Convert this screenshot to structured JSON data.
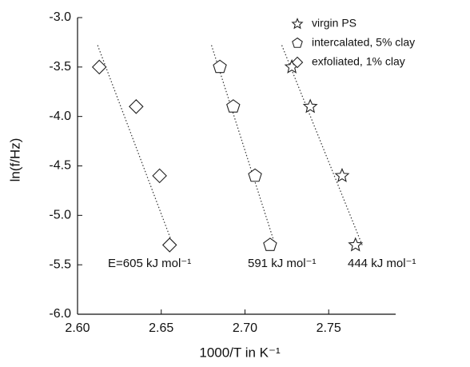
{
  "chart_data": {
    "type": "scatter",
    "x_label": "1000/T in K⁻¹",
    "y_label": "ln(f/Hz)",
    "xlim": [
      2.6,
      2.79
    ],
    "ylim": [
      -6.0,
      -3.0
    ],
    "xticks": [
      {
        "value": 2.6,
        "label": "2.60"
      },
      2.65,
      {
        "value": 2.7,
        "label": "2.70"
      },
      2.75
    ],
    "yticks": [
      {
        "value": -3.0,
        "label": "-3.0"
      },
      -3.5,
      {
        "value": -4.0,
        "label": "-4.0"
      },
      -4.5,
      {
        "value": -5.0,
        "label": "-5.0"
      },
      -5.5,
      {
        "value": -6.0,
        "label": "-6.0"
      }
    ],
    "legend_position": "upper right",
    "series": [
      {
        "name": "virgin PS",
        "marker": "star",
        "color": "#222222",
        "x": [
          2.728,
          2.739,
          2.758,
          2.766
        ],
        "values": [
          -3.5,
          -3.9,
          -4.6,
          -5.3
        ]
      },
      {
        "name": "intercalated, 5% clay",
        "marker": "pentagon",
        "color": "#222222",
        "x": [
          2.685,
          2.693,
          2.706,
          2.715
        ],
        "values": [
          -3.5,
          -3.9,
          -4.6,
          -5.3
        ]
      },
      {
        "name": "exfoliated, 1% clay",
        "marker": "diamond",
        "color": "#222222",
        "x": [
          2.613,
          2.635,
          2.649,
          2.655
        ],
        "values": [
          -3.5,
          -3.9,
          -4.6,
          -5.3
        ]
      }
    ],
    "fit_lines": [
      {
        "x": [
          2.722,
          2.77
        ],
        "values": [
          -3.28,
          -5.3
        ]
      },
      {
        "x": [
          2.68,
          2.718
        ],
        "values": [
          -3.28,
          -5.3
        ]
      },
      {
        "x": [
          2.612,
          2.657
        ],
        "values": [
          -3.28,
          -5.3
        ]
      }
    ],
    "annotations": [
      "E=605 kJ mol⁻¹",
      "591 kJ mol⁻¹",
      "444 kJ mol⁻¹"
    ]
  }
}
